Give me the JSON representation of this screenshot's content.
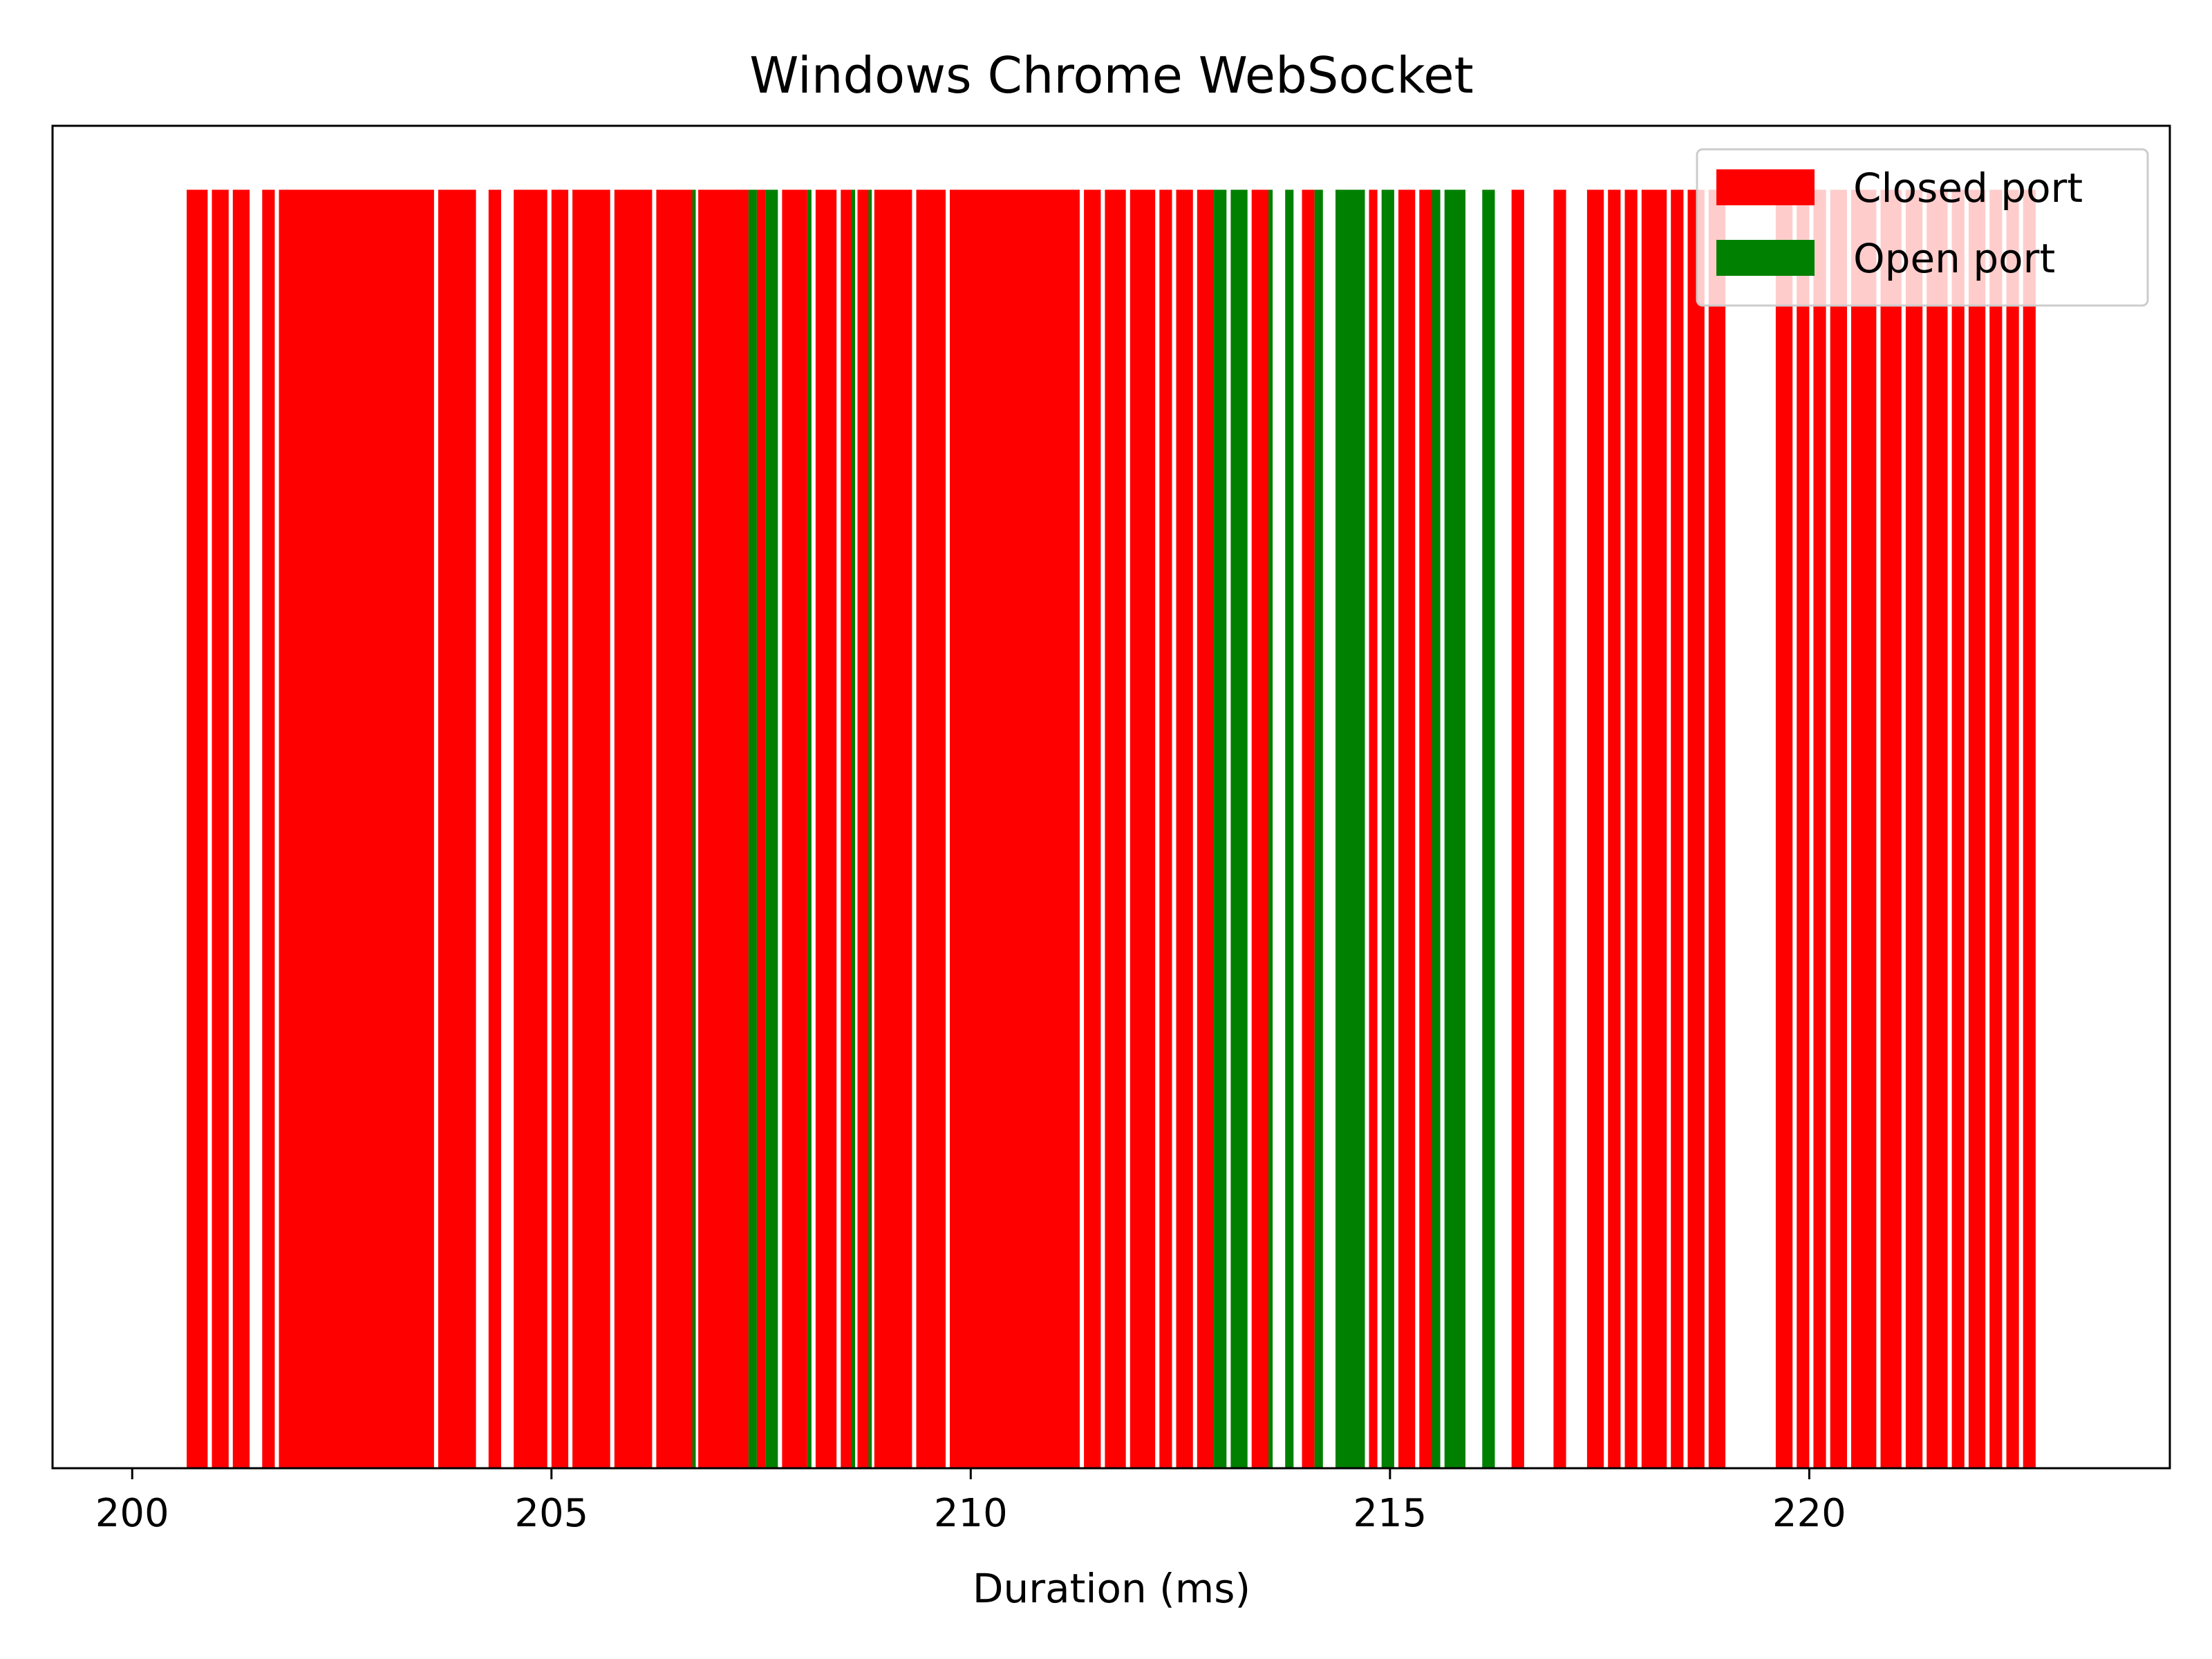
{
  "chart_data": {
    "type": "bar",
    "title": "Windows Chrome WebSocket",
    "xlabel": "Duration (ms)",
    "ylabel": "",
    "xlim": [
      199.05,
      224.3
    ],
    "ylim": [
      0,
      1.05
    ],
    "xticks": [
      200,
      205,
      210,
      215,
      220
    ],
    "yticks_visible": false,
    "grid": false,
    "legend_position": "top-right",
    "bar_height": 1,
    "series": [
      {
        "name": "Closed port",
        "color": "#ff0000",
        "segments": [
          [
            200.65,
            200.9
          ],
          [
            200.95,
            201.15
          ],
          [
            201.2,
            201.4
          ],
          [
            201.55,
            201.7
          ],
          [
            201.75,
            203.6
          ],
          [
            203.65,
            204.1
          ],
          [
            204.25,
            204.4
          ],
          [
            204.55,
            204.95
          ],
          [
            205.0,
            205.2
          ],
          [
            205.25,
            205.7
          ],
          [
            205.75,
            206.2
          ],
          [
            206.25,
            206.7
          ],
          [
            206.75,
            207.35
          ],
          [
            207.45,
            207.55
          ],
          [
            207.75,
            208.05
          ],
          [
            208.15,
            208.4
          ],
          [
            208.45,
            208.6
          ],
          [
            208.65,
            208.8
          ],
          [
            208.85,
            209.3
          ],
          [
            209.35,
            209.7
          ],
          [
            209.75,
            211.3
          ],
          [
            211.35,
            211.55
          ],
          [
            211.6,
            211.85
          ],
          [
            211.9,
            212.2
          ],
          [
            212.25,
            212.4
          ],
          [
            212.45,
            212.65
          ],
          [
            212.7,
            212.9
          ],
          [
            213.35,
            213.55
          ],
          [
            213.95,
            214.1
          ],
          [
            214.75,
            214.85
          ],
          [
            215.1,
            215.3
          ],
          [
            215.35,
            215.5
          ],
          [
            216.45,
            216.6
          ],
          [
            216.95,
            217.1
          ],
          [
            217.35,
            217.55
          ],
          [
            217.6,
            217.75
          ],
          [
            217.8,
            217.95
          ],
          [
            218.0,
            218.3
          ],
          [
            218.35,
            218.5
          ],
          [
            218.55,
            218.75
          ],
          [
            218.8,
            219.0
          ],
          [
            219.6,
            219.8
          ],
          [
            219.85,
            220.0
          ],
          [
            220.05,
            220.2
          ],
          [
            220.25,
            220.45
          ],
          [
            220.5,
            220.8
          ],
          [
            220.85,
            221.1
          ],
          [
            221.15,
            221.35
          ],
          [
            221.4,
            221.65
          ],
          [
            221.7,
            221.85
          ],
          [
            221.9,
            222.1
          ],
          [
            222.15,
            222.3
          ],
          [
            222.35,
            222.5
          ],
          [
            222.55,
            222.7
          ]
        ]
      },
      {
        "name": "Open port",
        "color": "#008000",
        "segments": [
          [
            206.68,
            206.72
          ],
          [
            207.35,
            207.45
          ],
          [
            207.55,
            207.7
          ],
          [
            208.05,
            208.1
          ],
          [
            208.58,
            208.62
          ],
          [
            208.78,
            208.82
          ],
          [
            212.9,
            213.05
          ],
          [
            213.1,
            213.3
          ],
          [
            213.55,
            213.6
          ],
          [
            213.75,
            213.85
          ],
          [
            214.1,
            214.2
          ],
          [
            214.35,
            214.7
          ],
          [
            214.9,
            215.05
          ],
          [
            215.5,
            215.6
          ],
          [
            215.65,
            215.9
          ],
          [
            216.1,
            216.25
          ]
        ]
      }
    ]
  }
}
